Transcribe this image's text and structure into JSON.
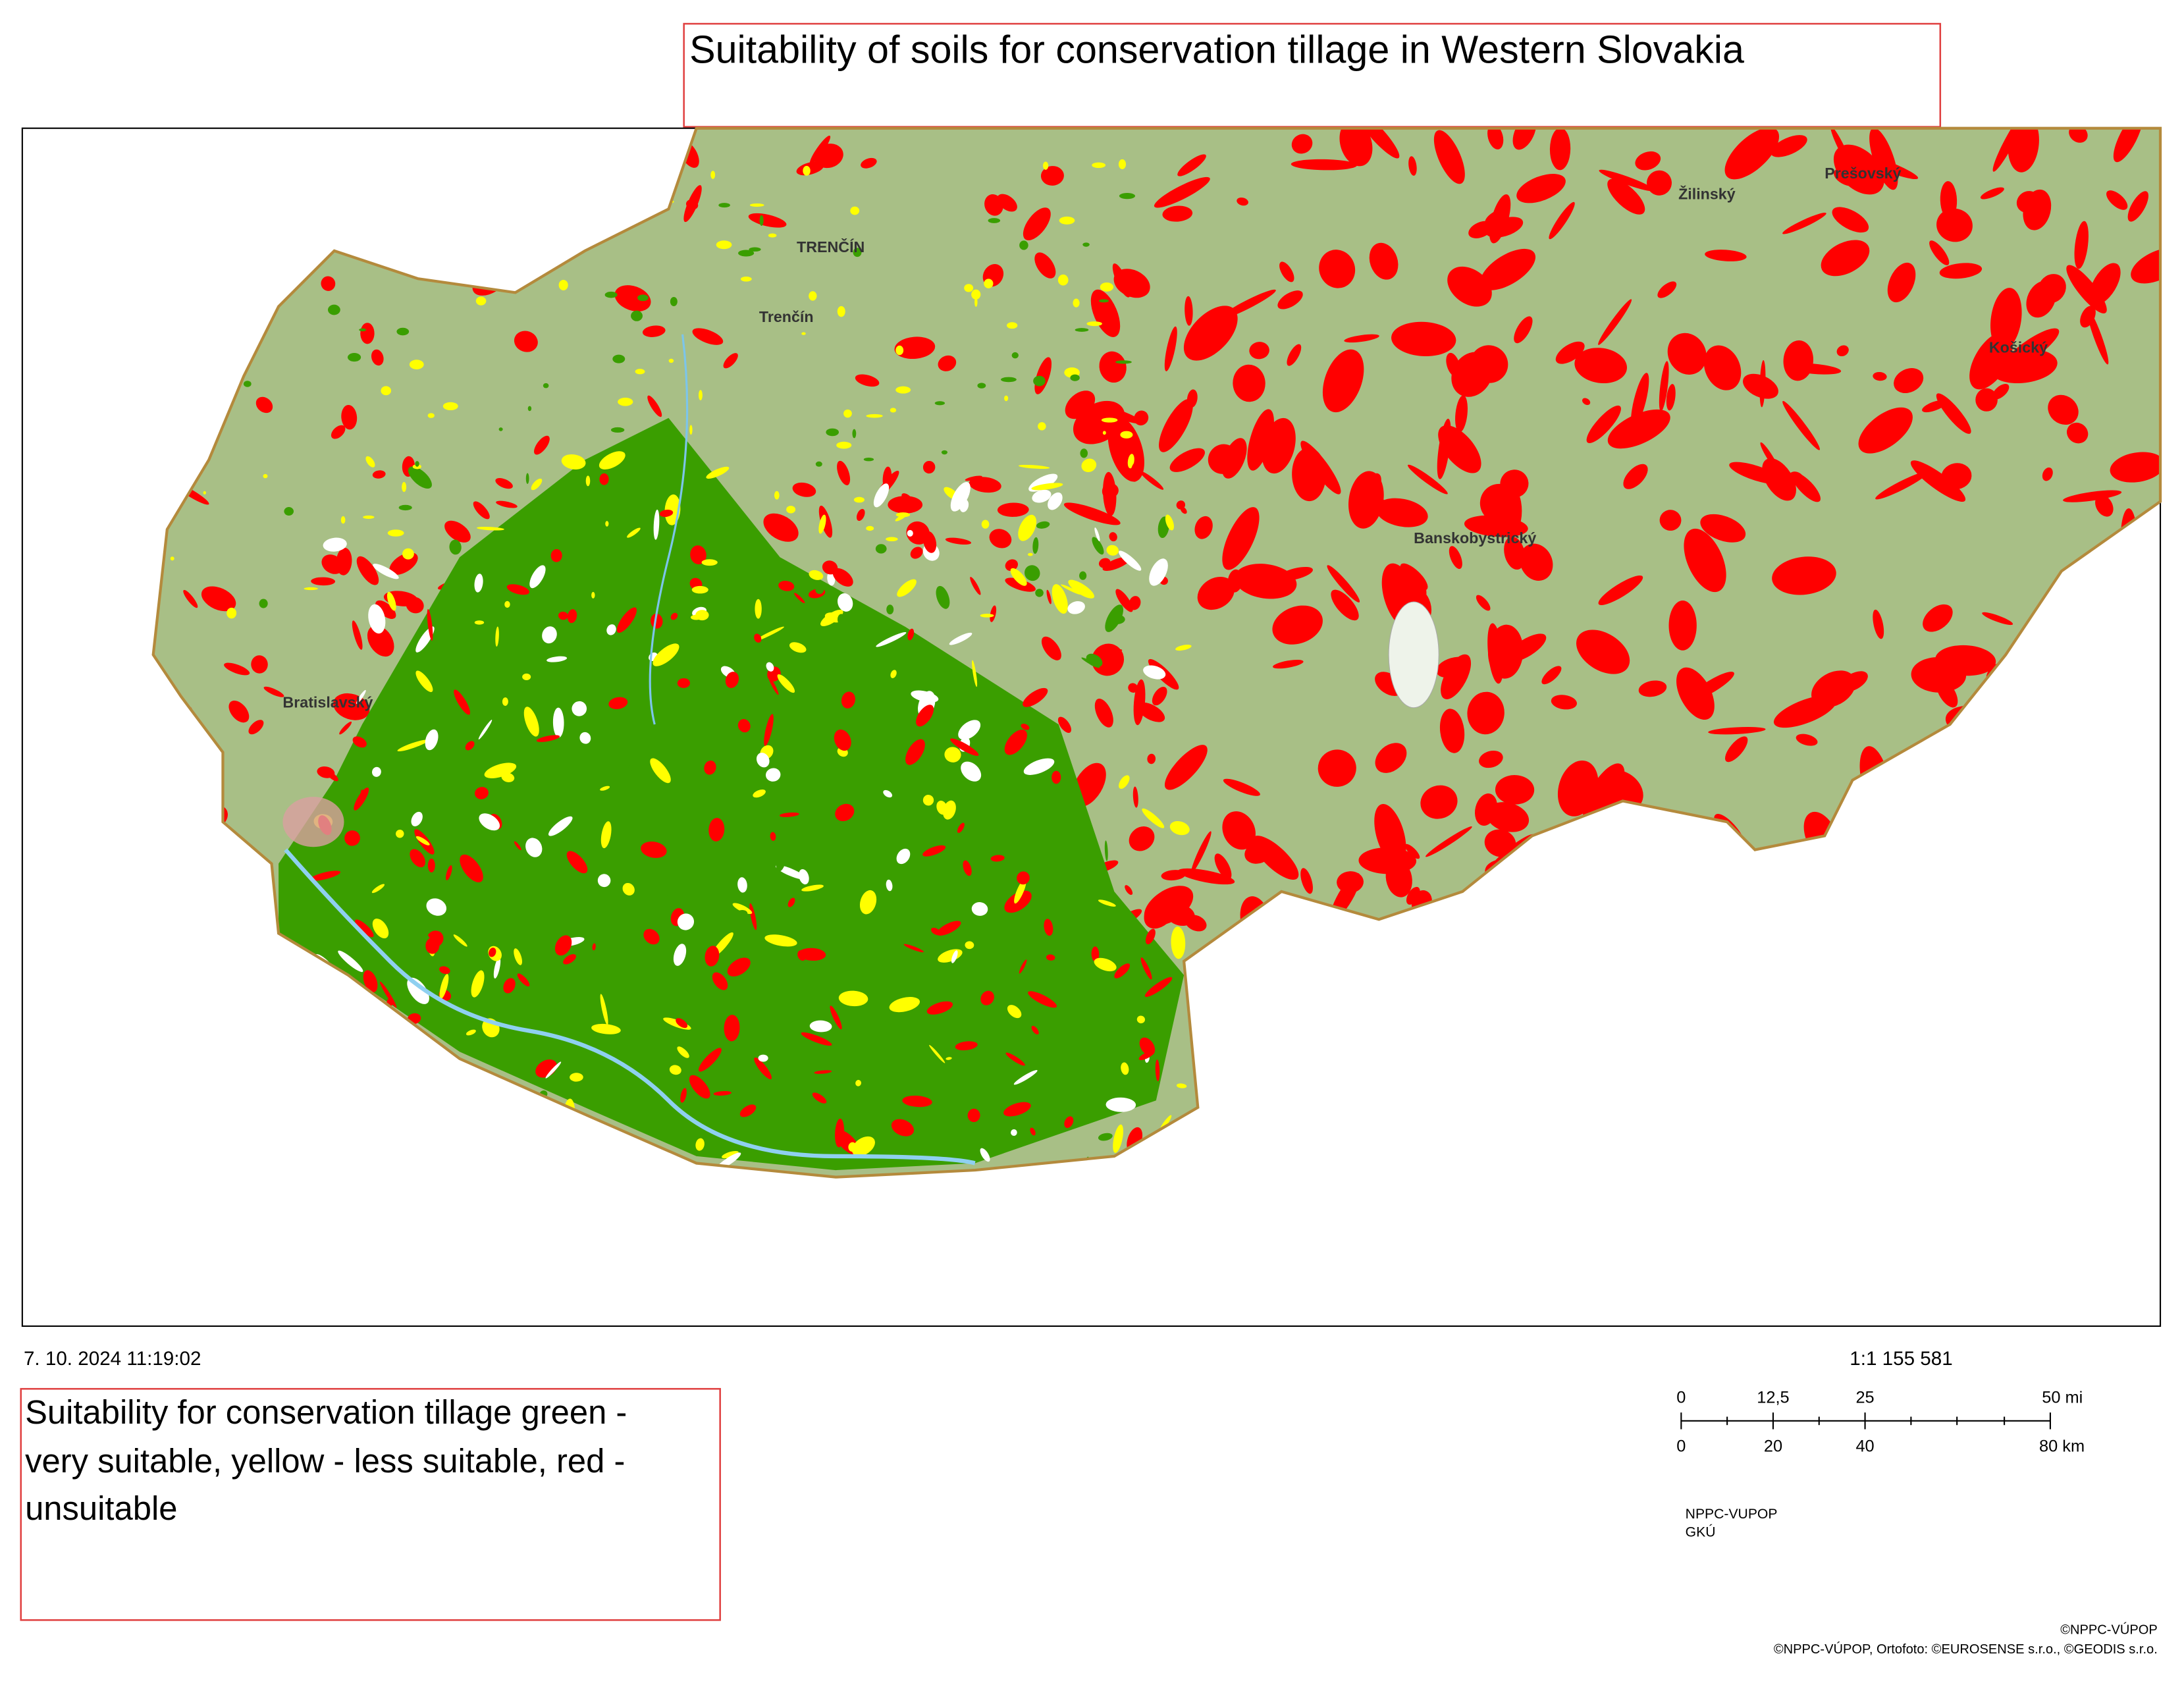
{
  "header": {
    "title": "Suitability of soils for conservation tillage in Western Slovakia"
  },
  "map": {
    "labels": [
      "Trenčín",
      "TRENČÍN",
      "Žilinský",
      "Prešovský",
      "Košický",
      "Bratislavský",
      "Banskobystrický"
    ]
  },
  "footer": {
    "timestamp": "7. 10. 2024 11:19:02",
    "legend": [
      "Suitability for conservation tillage green -",
      "very suitable, yellow - less suitable, red -",
      "unsuitable"
    ],
    "scale": "1:1 155 581",
    "scale_bar": {
      "miles": [
        "0",
        "12,5",
        "25",
        "50 mi"
      ],
      "km": [
        "0",
        "20",
        "40",
        "80 km"
      ]
    },
    "source": [
      "NPPC-VUPOP",
      "GKÚ"
    ],
    "copyright": [
      "©NPPC-VÚPOP",
      "©NPPC-VÚPOP, Ortofoto: ©EUROSENSE s.r.o., ©GEODIS s.r.o."
    ]
  }
}
